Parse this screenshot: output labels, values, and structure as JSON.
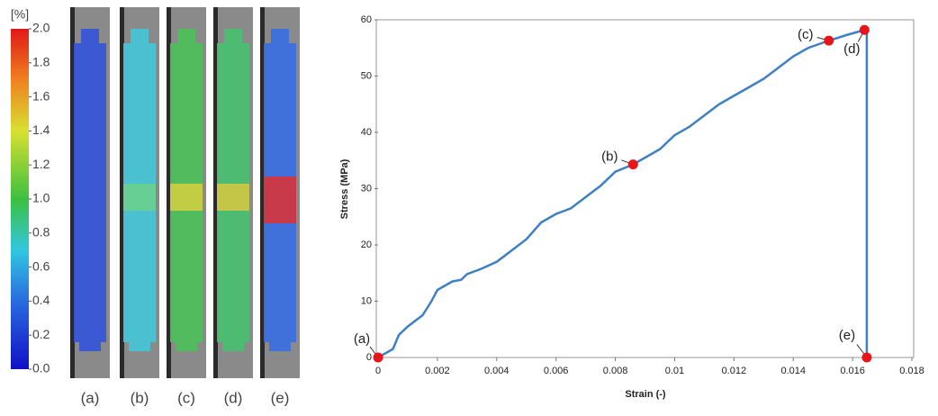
{
  "colorbar": {
    "unit": "[%]",
    "range": [
      0,
      2
    ],
    "ticks": [
      {
        "value": 0,
        "label": "0.0"
      },
      {
        "value": 0.2,
        "label": "0.2"
      },
      {
        "value": 0.4,
        "label": "0.4"
      },
      {
        "value": 0.6,
        "label": "0.6"
      },
      {
        "value": 0.8,
        "label": "0.8"
      },
      {
        "value": 1,
        "label": "1.0"
      },
      {
        "value": 1.2,
        "label": "1.2"
      },
      {
        "value": 1.4,
        "label": "1.4"
      },
      {
        "value": 1.6,
        "label": "1.6"
      },
      {
        "value": 1.8,
        "label": "1.8"
      },
      {
        "value": 2,
        "label": "2.0"
      }
    ]
  },
  "panels": [
    "(a)",
    "(b)",
    "(c)",
    "(d)",
    "(e)"
  ],
  "chart_data": {
    "type": "line",
    "xlabel": "Strain (-)",
    "ylabel": "Stress (MPa)",
    "xlim": [
      0,
      0.018
    ],
    "ylim": [
      0,
      60
    ],
    "xticks": [
      0,
      0.002,
      0.004,
      0.006,
      0.008,
      0.01,
      0.012,
      0.014,
      0.016,
      0.018
    ],
    "yticks": [
      0,
      10,
      20,
      30,
      40,
      50,
      60
    ],
    "grid": false,
    "series": [
      {
        "color": "#3f7fc4",
        "x": [
          0,
          0.0005,
          0.0007,
          0.001,
          0.0015,
          0.0018,
          0.002,
          0.0025,
          0.0028,
          0.003,
          0.0035,
          0.004,
          0.0045,
          0.005,
          0.0055,
          0.006,
          0.0065,
          0.007,
          0.0075,
          0.008,
          0.0086,
          0.009,
          0.0095,
          0.01,
          0.0105,
          0.011,
          0.0115,
          0.012,
          0.0125,
          0.013,
          0.0135,
          0.014,
          0.0145,
          0.0152,
          0.0158,
          0.0164,
          0.01648,
          0.01648
        ],
        "values": [
          0,
          1.5,
          4,
          5.5,
          7.5,
          10,
          12,
          13.5,
          13.8,
          14.8,
          15.8,
          17,
          19,
          21,
          24,
          25.5,
          26.5,
          28.5,
          30.5,
          33,
          34.3,
          35.5,
          37,
          39.5,
          41,
          43,
          45,
          46.5,
          48,
          49.5,
          51.5,
          53.5,
          55,
          56.3,
          57.3,
          58.2,
          57.5,
          0
        ]
      }
    ],
    "markers": {
      "color": "#e8141a",
      "x": [
        0,
        0.0086,
        0.0152,
        0.0164,
        0.01648
      ],
      "values": [
        0,
        34.3,
        56.3,
        58.2,
        0
      ],
      "labels": [
        "(a)",
        "(b)",
        "(c)",
        "(d)",
        "(e)"
      ]
    }
  }
}
